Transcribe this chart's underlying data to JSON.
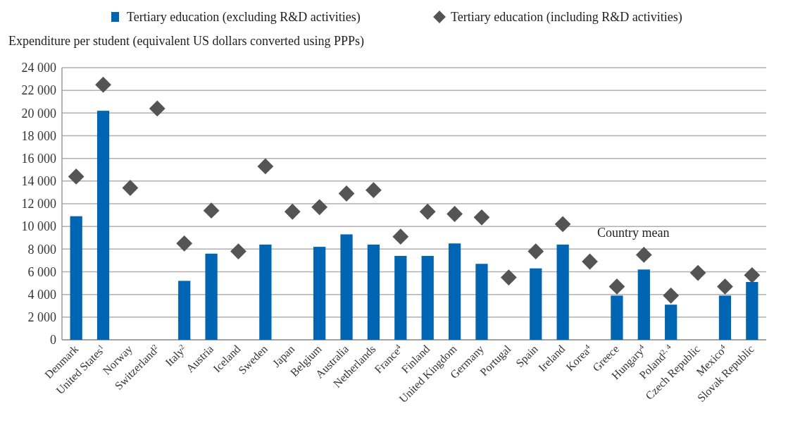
{
  "chart_data": {
    "type": "bar",
    "ylabel": "Expenditure per student (equivalent US dollars converted using PPPs)",
    "categories": [
      "Denmark",
      "United States$^{1}$",
      "Norway",
      "Switzerland$^{2}$",
      "Italy$^{2}$",
      "Austria",
      "Iceland",
      "Sweden",
      "Japan",
      "Belgium",
      "Australia",
      "Netherlands",
      "France$^{4}$",
      "Finland",
      "United Kingdom",
      "Germany",
      "Portugal",
      "Spain",
      "Ireland",
      "Korea$^{4}$",
      "Greece",
      "Hungary$^{4}$",
      "Poland$^{2, 4}$",
      "Czech Republic",
      "Mexico$^{4}$",
      "Slovak Republic"
    ],
    "series": [
      {
        "name": "Tertiary education (excluding R&D activities)",
        "color": "#0066b3",
        "values": [
          10900,
          20200,
          null,
          null,
          5200,
          7600,
          null,
          8400,
          null,
          8200,
          9300,
          8400,
          7400,
          7400,
          8500,
          6700,
          null,
          6300,
          8400,
          null,
          3900,
          6200,
          3100,
          null,
          3900,
          5100
        ]
      },
      {
        "name": "Tertiary education (including R&D activities)",
        "type": "scatter",
        "marker": "diamond",
        "color": "#545454",
        "values": [
          14400,
          22500,
          13400,
          20400,
          8500,
          11400,
          7800,
          15300,
          11300,
          11700,
          12900,
          13200,
          9100,
          11300,
          11100,
          10800,
          5500,
          7800,
          10200,
          6900,
          4700,
          7500,
          3900,
          5900,
          4700,
          5700
        ]
      }
    ],
    "ylim": [
      0,
      24000
    ],
    "yticks": [
      0,
      {
        "value": 2000,
        "label": "2 000"
      },
      {
        "value": 4000,
        "label": "4 000"
      },
      {
        "value": 6000,
        "label": "6 000"
      },
      {
        "value": 8000,
        "label": "8 000"
      },
      {
        "value": 10000,
        "label": "10 000"
      },
      {
        "value": 12000,
        "label": "12 000"
      },
      {
        "value": 14000,
        "label": "14 000"
      },
      {
        "value": 16000,
        "label": "16 000"
      },
      {
        "value": 18000,
        "label": "18 000"
      },
      {
        "value": 20000,
        "label": "20 000"
      },
      {
        "value": 22000,
        "label": "22 000"
      },
      {
        "value": 24000,
        "label": "24 000"
      }
    ],
    "grid": "y",
    "legend": "top",
    "annotations": [
      "Country mean"
    ]
  }
}
